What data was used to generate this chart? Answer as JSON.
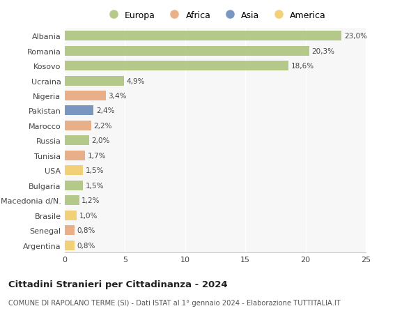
{
  "countries": [
    "Albania",
    "Romania",
    "Kosovo",
    "Ucraina",
    "Nigeria",
    "Pakistan",
    "Marocco",
    "Russia",
    "Tunisia",
    "USA",
    "Bulgaria",
    "Macedonia d/N.",
    "Brasile",
    "Senegal",
    "Argentina"
  ],
  "values": [
    23.0,
    20.3,
    18.6,
    4.9,
    3.4,
    2.4,
    2.2,
    2.0,
    1.7,
    1.5,
    1.5,
    1.2,
    1.0,
    0.8,
    0.8
  ],
  "labels": [
    "23,0%",
    "20,3%",
    "18,6%",
    "4,9%",
    "3,4%",
    "2,4%",
    "2,2%",
    "2,0%",
    "1,7%",
    "1,5%",
    "1,5%",
    "1,2%",
    "1,0%",
    "0,8%",
    "0,8%"
  ],
  "continents": [
    "Europa",
    "Europa",
    "Europa",
    "Europa",
    "Africa",
    "Asia",
    "Africa",
    "Europa",
    "Africa",
    "America",
    "Europa",
    "Europa",
    "America",
    "Africa",
    "America"
  ],
  "colors": {
    "Europa": "#adc47d",
    "Africa": "#e8a87c",
    "Asia": "#6b8cba",
    "America": "#f2cc6a"
  },
  "title": "Cittadini Stranieri per Cittadinanza - 2024",
  "subtitle": "COMUNE DI RAPOLANO TERME (SI) - Dati ISTAT al 1° gennaio 2024 - Elaborazione TUTTITALIA.IT",
  "xlim": [
    0,
    25
  ],
  "xticks": [
    0,
    5,
    10,
    15,
    20,
    25
  ],
  "background_color": "#ffffff",
  "plot_background": "#f7f7f7"
}
